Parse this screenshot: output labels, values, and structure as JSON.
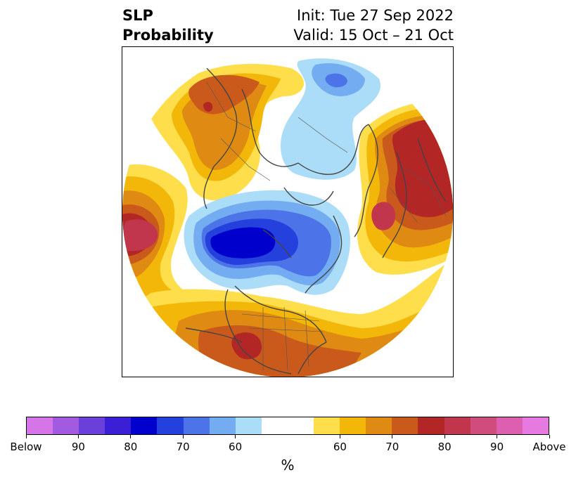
{
  "title": {
    "left_line1": "SLP",
    "left_line2": "Probability",
    "right_line1": "Init: Tue 27 Sep 2022",
    "right_line2": "Valid: 15 Oct – 21 Oct"
  },
  "map": {
    "projection": "north-polar-stereographic",
    "variable": "SLP"
  },
  "colorbar": {
    "unit_label": "%",
    "tick_labels": [
      "Below",
      "90",
      "80",
      "70",
      "60",
      "60",
      "70",
      "80",
      "90",
      "Above"
    ],
    "segments": [
      {
        "color": "#d675e8"
      },
      {
        "color": "#a15ae0"
      },
      {
        "color": "#6b3fd9"
      },
      {
        "color": "#3a1fd6"
      },
      {
        "color": "#0000cd"
      },
      {
        "color": "#2441dd"
      },
      {
        "color": "#4c74e8"
      },
      {
        "color": "#73acf1"
      },
      {
        "color": "#abdcf8"
      },
      {
        "color": "#ffffff"
      },
      {
        "color": "#ffffff"
      },
      {
        "color": "#fede4a"
      },
      {
        "color": "#f2b709"
      },
      {
        "color": "#df8a12"
      },
      {
        "color": "#c95a1c"
      },
      {
        "color": "#b32626"
      },
      {
        "color": "#c1364d"
      },
      {
        "color": "#cf4c7c"
      },
      {
        "color": "#dc5fb0"
      },
      {
        "color": "#e77ae0"
      }
    ]
  },
  "colors": {
    "light_blue": "#abdcf8",
    "mid_blue": "#4c74e8",
    "dark_blue": "#0000cd",
    "yellow": "#fede4a",
    "gold": "#f2b709",
    "orange": "#df8a12",
    "rust": "#c95a1c",
    "red": "#b32626",
    "crimson": "#c1364d",
    "coastline": "#444444"
  }
}
